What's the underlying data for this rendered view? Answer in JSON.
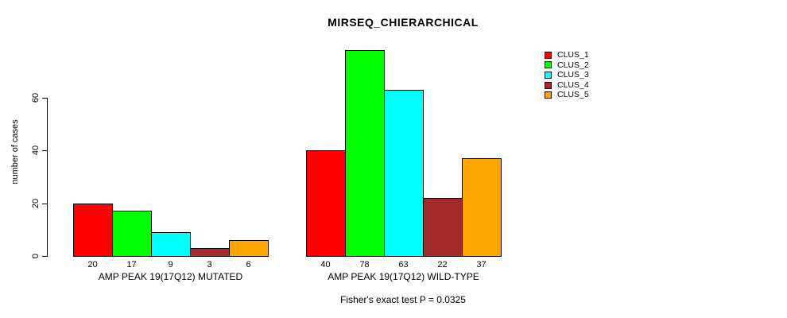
{
  "colors": {
    "background": "#ffffff",
    "axis": "#000000",
    "text": "#000000"
  },
  "chart_data": {
    "type": "bar",
    "title": "MIRSEQ_CHIERARCHICAL",
    "ylabel": "number of cases",
    "xlabel": "",
    "ylim": [
      0,
      80
    ],
    "yticks": [
      0,
      20,
      40,
      60
    ],
    "grid": false,
    "legend_position": "right",
    "categories": [
      "AMP PEAK 19(17Q12) MUTATED",
      "AMP PEAK 19(17Q12) WILD-TYPE"
    ],
    "series": [
      {
        "name": "CLUS_1",
        "color": "#FF0000",
        "values": [
          20,
          40
        ]
      },
      {
        "name": "CLUS_2",
        "color": "#00FF00",
        "values": [
          17,
          78
        ]
      },
      {
        "name": "CLUS_3",
        "color": "#00FFFF",
        "values": [
          9,
          63
        ]
      },
      {
        "name": "CLUS_4",
        "color": "#A52A2A",
        "values": [
          3,
          22
        ]
      },
      {
        "name": "CLUS_5",
        "color": "#FFA500",
        "values": [
          6,
          37
        ]
      }
    ],
    "annotation": "Fisher's exact test P = 0.0325"
  }
}
